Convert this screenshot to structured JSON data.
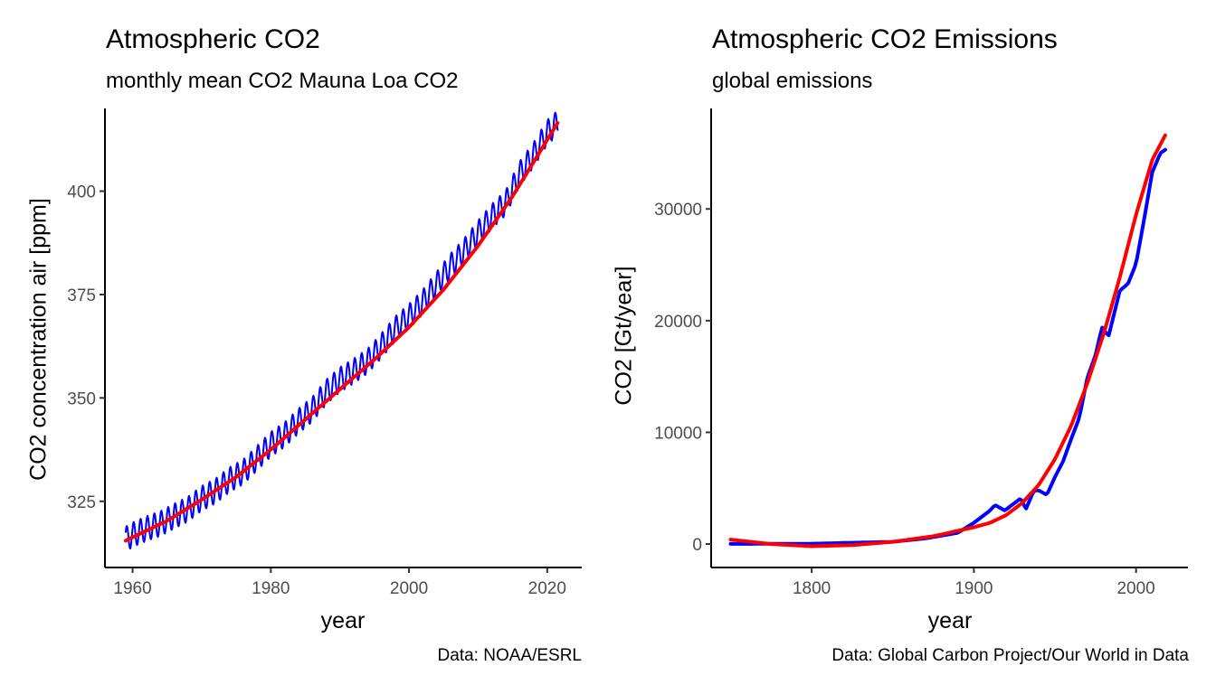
{
  "charts": {
    "left": {
      "title": "Atmospheric CO2",
      "subtitle": "monthly mean CO2 Mauna Loa CO2",
      "caption": "Data: NOAA/ESRL",
      "xlabel": "year",
      "ylabel": "CO2 concentration air [ppm]"
    },
    "right": {
      "title": "Atmospheric CO2 Emissions",
      "subtitle": "global emissions",
      "caption": "Data: Global Carbon Project/Our World in Data",
      "xlabel": "year",
      "ylabel": "CO2 [Gt/year]"
    }
  },
  "chart_data": [
    {
      "type": "line",
      "title": "Atmospheric CO2",
      "subtitle": "monthly mean CO2 Mauna Loa CO2",
      "caption": "Data: NOAA/ESRL",
      "xlabel": "year",
      "ylabel": "CO2 concentration air [ppm]",
      "xlim": [
        1956,
        2025
      ],
      "ylim": [
        309,
        420
      ],
      "x_ticks": [
        1960,
        1980,
        2000,
        2020
      ],
      "y_ticks": [
        325,
        350,
        375,
        400
      ],
      "grid": false,
      "series": [
        {
          "name": "",
          "color": "#0000ff",
          "style": "monthly observations with seasonal cycle (amplitude ~3 ppm)",
          "x": [
            1959,
            1960,
            1962,
            1964,
            1966,
            1968,
            1970,
            1972,
            1974,
            1976,
            1978,
            1980,
            1982,
            1984,
            1986,
            1988,
            1990,
            1992,
            1994,
            1996,
            1998,
            2000,
            2002,
            2004,
            2006,
            2008,
            2010,
            2012,
            2014,
            2016,
            2018,
            2020,
            2021.5
          ],
          "y": [
            315.9,
            316.9,
            318.4,
            319.6,
            321.4,
            323.1,
            325.7,
            327.5,
            330.2,
            332.1,
            335.4,
            338.8,
            341.1,
            344.4,
            347.2,
            351.4,
            354.4,
            356.5,
            358.9,
            362.6,
            366.7,
            369.7,
            373.2,
            377.5,
            381.9,
            385.6,
            389.9,
            393.9,
            397.2,
            404.2,
            408.7,
            414.2,
            416.5
          ]
        },
        {
          "name": "",
          "color": "#ff0000",
          "style": "smoothed trend",
          "x": [
            1959,
            1965,
            1970,
            1975,
            1980,
            1985,
            1990,
            1995,
            2000,
            2005,
            2010,
            2015,
            2021.5
          ],
          "y": [
            315.5,
            320.3,
            325.4,
            330.9,
            337.5,
            344.8,
            352.1,
            359.3,
            367.1,
            376.2,
            386.8,
            398.8,
            416.5
          ]
        }
      ]
    },
    {
      "type": "line",
      "title": "Atmospheric CO2 Emissions",
      "subtitle": "global emissions",
      "caption": "Data: Global Carbon Project/Our World in Data",
      "xlabel": "year",
      "ylabel": "CO2 [Gt/year]",
      "xlim": [
        1738,
        2032
      ],
      "ylim": [
        -2100,
        39000
      ],
      "x_ticks": [
        1800,
        1900,
        2000
      ],
      "y_ticks": [
        0,
        10000,
        20000,
        30000
      ],
      "grid": false,
      "series": [
        {
          "name": "",
          "color": "#0000ff",
          "style": "annual emissions",
          "x": [
            1750,
            1800,
            1850,
            1870,
            1890,
            1900,
            1910,
            1913,
            1919,
            1929,
            1932,
            1937,
            1940,
            1945,
            1950,
            1955,
            1960,
            1965,
            1970,
            1975,
            1979,
            1983,
            1990,
            1995,
            2000,
            2005,
            2010,
            2015,
            2018
          ],
          "y": [
            10,
            30,
            200,
            500,
            1000,
            1900,
            3000,
            3500,
            3000,
            4100,
            3100,
            4800,
            4800,
            4400,
            6000,
            7400,
            9400,
            11300,
            14900,
            16900,
            19400,
            18600,
            22700,
            23300,
            25100,
            29100,
            33300,
            35000,
            35300
          ]
        },
        {
          "name": "",
          "color": "#ff0000",
          "style": "smoothed trend",
          "x": [
            1750,
            1775,
            1800,
            1825,
            1850,
            1875,
            1900,
            1910,
            1920,
            1930,
            1940,
            1950,
            1960,
            1970,
            1980,
            1990,
            2000,
            2010,
            2018
          ],
          "y": [
            400,
            0,
            -200,
            -100,
            200,
            700,
            1500,
            1900,
            2600,
            3700,
            5300,
            7600,
            10600,
            14400,
            18800,
            23900,
            29500,
            34400,
            36600
          ]
        }
      ]
    }
  ]
}
